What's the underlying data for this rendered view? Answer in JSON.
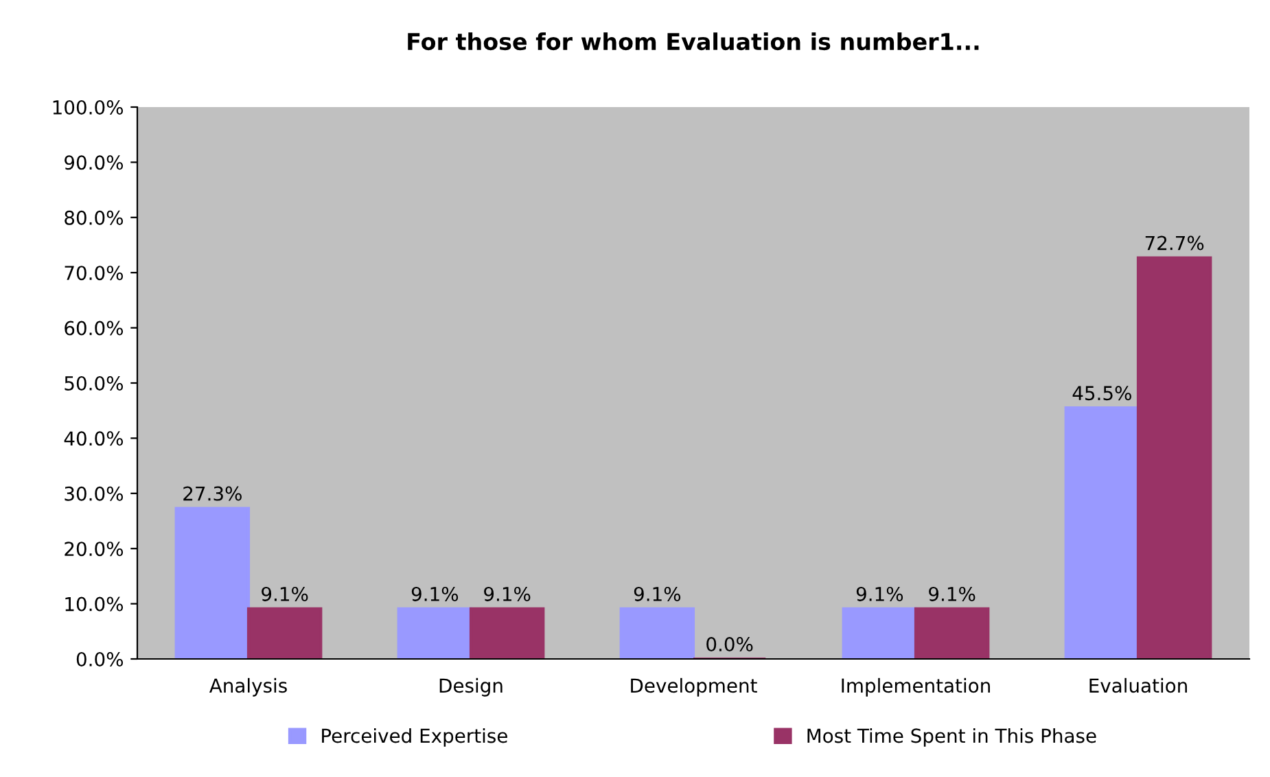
{
  "chart_data": {
    "type": "bar",
    "title": "For those for whom Evaluation is number1...",
    "categories": [
      "Analysis",
      "Design",
      "Development",
      "Implementation",
      "Evaluation"
    ],
    "series": [
      {
        "name": "Perceived Expertise",
        "color": "#9999ff",
        "values": [
          27.3,
          9.1,
          9.1,
          9.1,
          45.5
        ],
        "value_labels": [
          "27.3%",
          "9.1%",
          "9.1%",
          "9.1%",
          "45.5%"
        ]
      },
      {
        "name": "Most Time Spent in This Phase",
        "color": "#993366",
        "values": [
          9.1,
          9.1,
          0.0,
          9.1,
          72.7
        ],
        "value_labels": [
          "9.1%",
          "9.1%",
          "0.0%",
          "9.1%",
          "72.7%"
        ]
      }
    ],
    "ylim": [
      0,
      100
    ],
    "yticks": [
      {
        "value": 0,
        "label": "0.0%"
      },
      {
        "value": 10,
        "label": "10.0%"
      },
      {
        "value": 20,
        "label": "20.0%"
      },
      {
        "value": 30,
        "label": "30.0%"
      },
      {
        "value": 40,
        "label": "40.0%"
      },
      {
        "value": 50,
        "label": "50.0%"
      },
      {
        "value": 60,
        "label": "60.0%"
      },
      {
        "value": 70,
        "label": "70.0%"
      },
      {
        "value": 80,
        "label": "80.0%"
      },
      {
        "value": 90,
        "label": "90.0%"
      },
      {
        "value": 100,
        "label": "100.0%"
      }
    ],
    "grid": false,
    "legend": "bottom"
  }
}
